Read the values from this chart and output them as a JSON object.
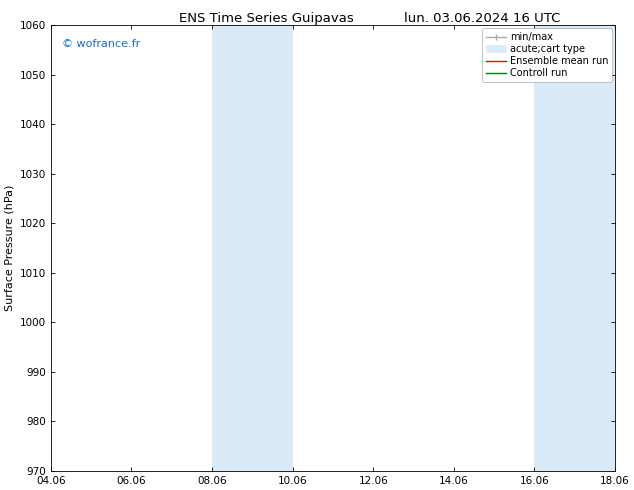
{
  "title_left": "ENS Time Series Guipavas",
  "title_right": "lun. 03.06.2024 16 UTC",
  "ylabel": "Surface Pressure (hPa)",
  "ylim": [
    970,
    1060
  ],
  "yticks": [
    970,
    980,
    990,
    1000,
    1010,
    1020,
    1030,
    1040,
    1050,
    1060
  ],
  "xlim_start": 0,
  "xlim_end": 14,
  "xtick_labels": [
    "04.06",
    "06.06",
    "08.06",
    "10.06",
    "12.06",
    "14.06",
    "16.06",
    "18.06"
  ],
  "xtick_positions": [
    0,
    2,
    4,
    6,
    8,
    10,
    12,
    14
  ],
  "shaded_regions": [
    {
      "xstart": 4,
      "xend": 6
    },
    {
      "xstart": 12,
      "xend": 14
    }
  ],
  "shaded_color": "#daeaf7",
  "watermark_text": "© wofrance.fr",
  "watermark_color": "#1a6dcc",
  "legend_labels": [
    "min/max",
    "acute;cart type",
    "Ensemble mean run",
    "Controll run"
  ],
  "legend_colors": [
    "#aaaaaa",
    "#daeaf7",
    "red",
    "green"
  ],
  "bg_color": "#ffffff",
  "axes_bg_color": "#ffffff",
  "title_fontsize": 9.5,
  "label_fontsize": 8,
  "tick_fontsize": 7.5,
  "legend_fontsize": 7
}
